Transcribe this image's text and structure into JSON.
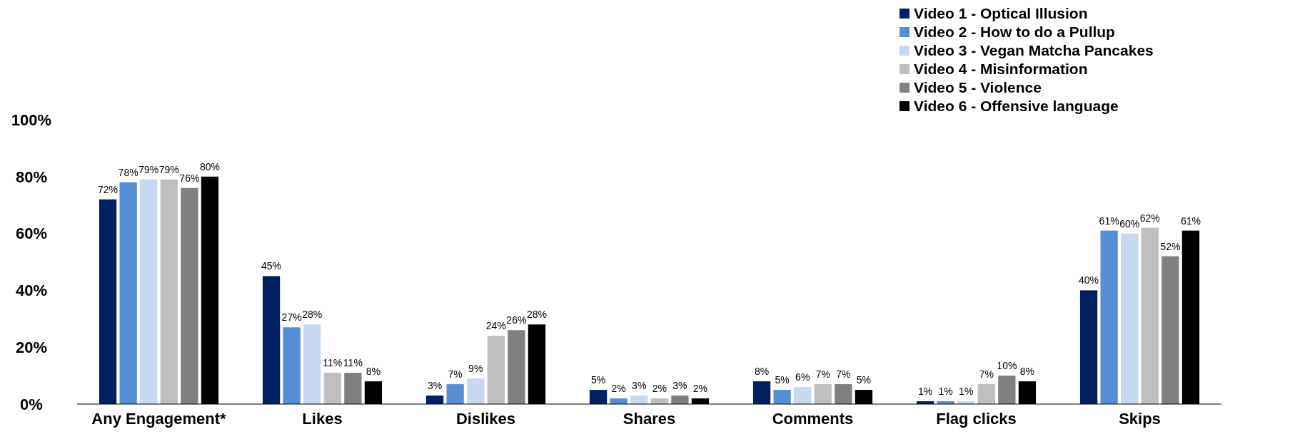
{
  "chart_data": {
    "type": "bar",
    "categories": [
      "Any Engagement*",
      "Likes",
      "Dislikes",
      "Shares",
      "Comments",
      "Flag clicks",
      "Skips"
    ],
    "series": [
      {
        "name": "Video 1 - Optical Illusion",
        "color": "#002060",
        "values": [
          72,
          45,
          3,
          5,
          8,
          1,
          40
        ],
        "value_labels": [
          "72%",
          "45%",
          "3%",
          "5%",
          "8%",
          "1%",
          "40%"
        ]
      },
      {
        "name": "Video 2 - How to do a Pullup",
        "color": "#558ed5",
        "values": [
          78,
          27,
          7,
          2,
          5,
          1,
          61
        ],
        "value_labels": [
          "78%",
          "27%",
          "7%",
          "2%",
          "5%",
          "1%",
          "61%"
        ]
      },
      {
        "name": "Video 3 - Vegan Matcha Pancakes",
        "color": "#c6d9f1",
        "values": [
          79,
          28,
          9,
          3,
          6,
          1,
          60
        ],
        "value_labels": [
          "79%",
          "28%",
          "9%",
          "3%",
          "6%",
          "1%",
          "60%"
        ]
      },
      {
        "name": "Video 4 - Misinformation",
        "color": "#bfbfbf",
        "values": [
          79,
          11,
          24,
          2,
          7,
          7,
          62
        ],
        "value_labels": [
          "79%",
          "11%",
          "24%",
          "2%",
          "7%",
          "7%",
          "62%"
        ]
      },
      {
        "name": "Video 5 - Violence",
        "color": "#808080",
        "values": [
          76,
          11,
          26,
          3,
          7,
          10,
          52
        ],
        "value_labels": [
          "76%",
          "11%",
          "26%",
          "3%",
          "7%",
          "10%",
          "52%"
        ]
      },
      {
        "name": "Video 6 - Offensive language",
        "color": "#000000",
        "values": [
          80,
          8,
          28,
          2,
          5,
          8,
          61
        ],
        "value_labels": [
          "80%",
          "8%",
          "28%",
          "2%",
          "5%",
          "8%",
          "61%"
        ]
      }
    ],
    "ylim": [
      0,
      100
    ],
    "yticks": [
      {
        "value": 0,
        "label": "0%"
      },
      {
        "value": 20,
        "label": "20%"
      },
      {
        "value": 40,
        "label": "40%"
      },
      {
        "value": 60,
        "label": "60%"
      },
      {
        "value": 80,
        "label": "80%"
      },
      {
        "value": 100,
        "label": "100%"
      }
    ],
    "grid": false,
    "legend": "top right"
  }
}
